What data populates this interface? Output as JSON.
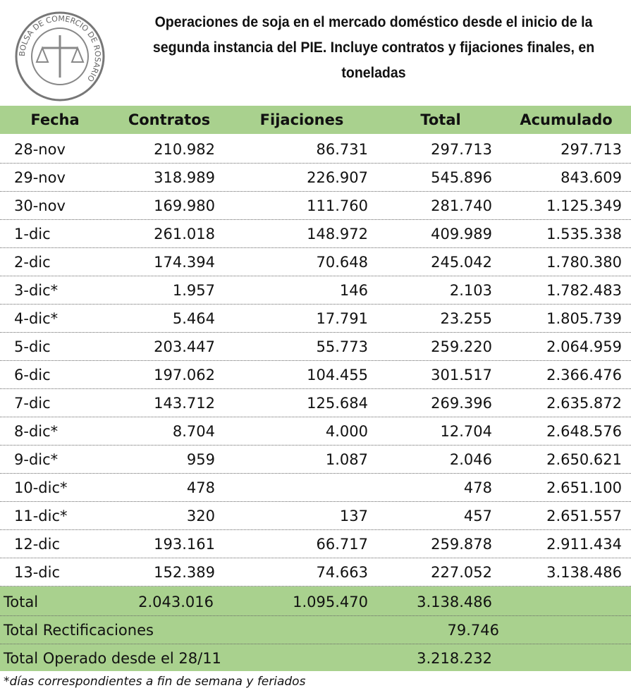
{
  "header": {
    "logo_text": "BOLSA DE COMERCIO DE ROSARIO",
    "title": "Operaciones de soja en el mercado doméstico desde el inicio de la segunda instancia del PIE. Incluye contratos y fijaciones finales, en toneladas"
  },
  "table": {
    "columns": [
      "Fecha",
      "Contratos",
      "Fijaciones",
      "Total",
      "Acumulado"
    ],
    "rows": [
      [
        "28-nov",
        "210.982",
        "86.731",
        "297.713",
        "297.713"
      ],
      [
        "29-nov",
        "318.989",
        "226.907",
        "545.896",
        "843.609"
      ],
      [
        "30-nov",
        "169.980",
        "111.760",
        "281.740",
        "1.125.349"
      ],
      [
        "1-dic",
        "261.018",
        "148.972",
        "409.989",
        "1.535.338"
      ],
      [
        "2-dic",
        "174.394",
        "70.648",
        "245.042",
        "1.780.380"
      ],
      [
        "3-dic*",
        "1.957",
        "146",
        "2.103",
        "1.782.483"
      ],
      [
        "4-dic*",
        "5.464",
        "17.791",
        "23.255",
        "1.805.739"
      ],
      [
        "5-dic",
        "203.447",
        "55.773",
        "259.220",
        "2.064.959"
      ],
      [
        "6-dic",
        "197.062",
        "104.455",
        "301.517",
        "2.366.476"
      ],
      [
        "7-dic",
        "143.712",
        "125.684",
        "269.396",
        "2.635.872"
      ],
      [
        "8-dic*",
        "8.704",
        "4.000",
        "12.704",
        "2.648.576"
      ],
      [
        "9-dic*",
        "959",
        "1.087",
        "2.046",
        "2.650.621"
      ],
      [
        "10-dic*",
        "478",
        null,
        "478",
        "2.651.100"
      ],
      [
        "11-dic*",
        "320",
        "137",
        "457",
        "2.651.557"
      ],
      [
        "12-dic",
        "193.161",
        "66.717",
        "259.878",
        "2.911.434"
      ],
      [
        "13-dic",
        "152.389",
        "74.663",
        "227.052",
        "3.138.486"
      ]
    ],
    "totals": {
      "label": "Total",
      "contratos": "2.043.016",
      "fijaciones": "1.095.470",
      "total": "3.138.486"
    },
    "rectificaciones": {
      "label": "Total Rectificaciones",
      "value": "79.746"
    },
    "operado": {
      "label": "Total Operado desde el 28/11",
      "value": "3.218.232"
    }
  },
  "footnote": "*días correspondientes a fin de semana y feriados"
}
